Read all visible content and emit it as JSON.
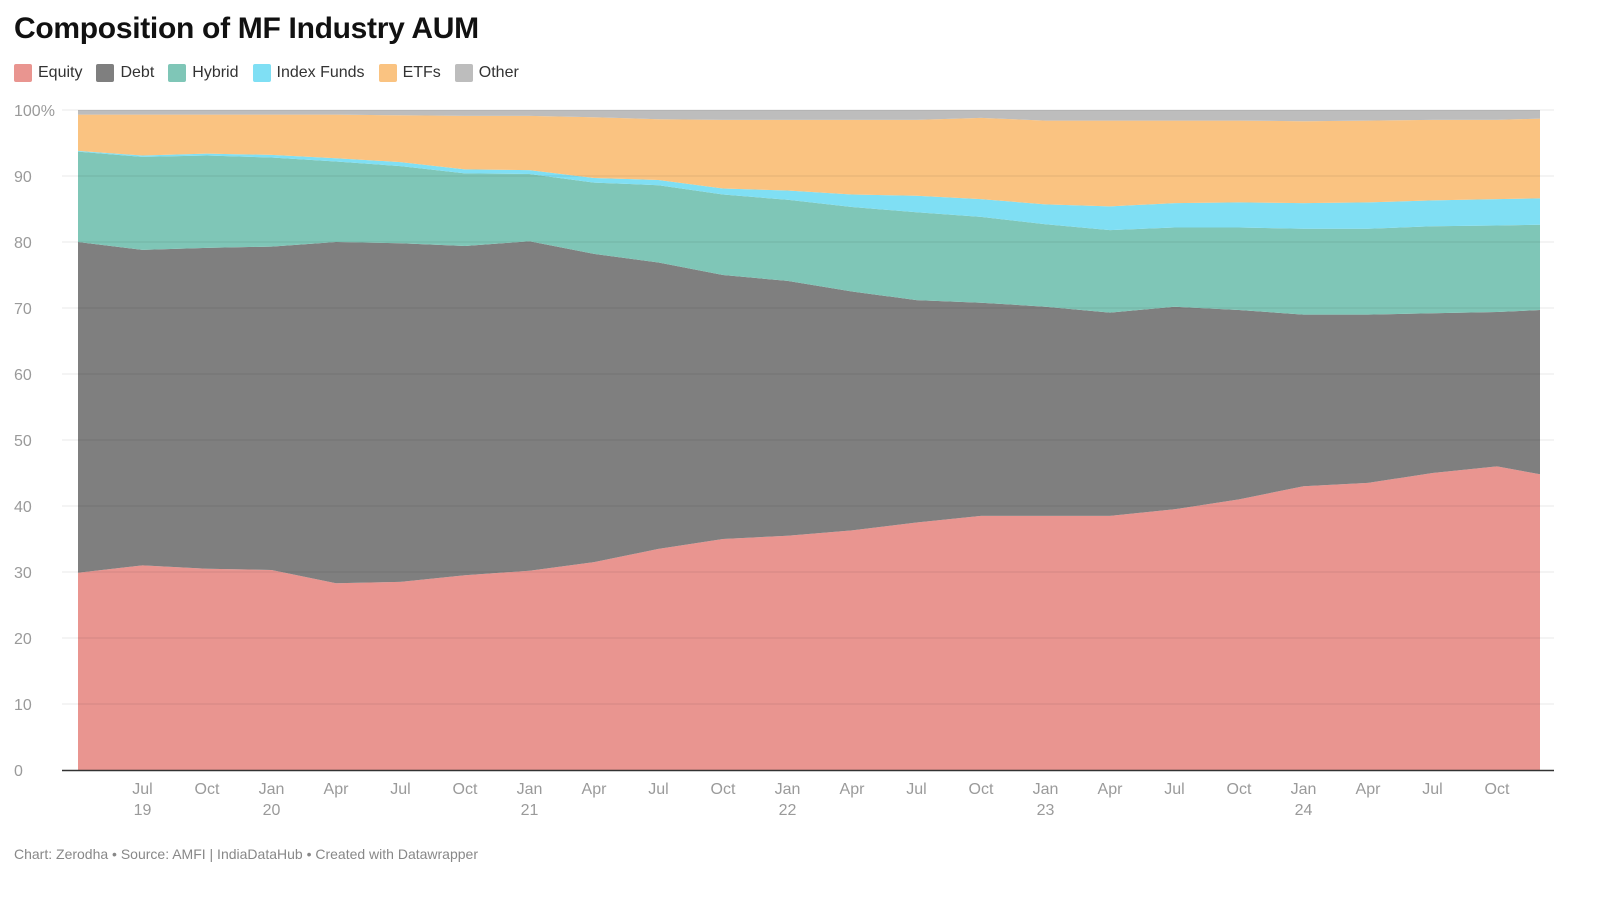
{
  "title": "Composition of MF Industry AUM",
  "footer": "Chart: Zerodha • Source: AMFI | IndiaDataHub • Created with Datawrapper",
  "chart_data": {
    "type": "area",
    "stacked": true,
    "title": "Composition of MF Industry AUM",
    "xlabel": "",
    "ylabel": "",
    "ylim": [
      0,
      100
    ],
    "y_ticks": [
      "0",
      "10",
      "20",
      "30",
      "40",
      "50",
      "60",
      "70",
      "80",
      "90",
      "100%"
    ],
    "x_ticks": [
      {
        "date": "2019-07",
        "label": "Jul",
        "year": "19"
      },
      {
        "date": "2019-10",
        "label": "Oct",
        "year": ""
      },
      {
        "date": "2020-01",
        "label": "Jan",
        "year": "20"
      },
      {
        "date": "2020-04",
        "label": "Apr",
        "year": ""
      },
      {
        "date": "2020-07",
        "label": "Jul",
        "year": ""
      },
      {
        "date": "2020-10",
        "label": "Oct",
        "year": ""
      },
      {
        "date": "2021-01",
        "label": "Jan",
        "year": "21"
      },
      {
        "date": "2021-04",
        "label": "Apr",
        "year": ""
      },
      {
        "date": "2021-07",
        "label": "Jul",
        "year": ""
      },
      {
        "date": "2021-10",
        "label": "Oct",
        "year": ""
      },
      {
        "date": "2022-01",
        "label": "Jan",
        "year": "22"
      },
      {
        "date": "2022-04",
        "label": "Apr",
        "year": ""
      },
      {
        "date": "2022-07",
        "label": "Jul",
        "year": ""
      },
      {
        "date": "2022-10",
        "label": "Oct",
        "year": ""
      },
      {
        "date": "2023-01",
        "label": "Jan",
        "year": "23"
      },
      {
        "date": "2023-04",
        "label": "Apr",
        "year": ""
      },
      {
        "date": "2023-07",
        "label": "Jul",
        "year": ""
      },
      {
        "date": "2023-10",
        "label": "Oct",
        "year": ""
      },
      {
        "date": "2024-01",
        "label": "Jan",
        "year": "24"
      },
      {
        "date": "2024-04",
        "label": "Apr",
        "year": ""
      },
      {
        "date": "2024-07",
        "label": "Jul",
        "year": ""
      },
      {
        "date": "2024-10",
        "label": "Oct",
        "year": ""
      }
    ],
    "x": [
      "2019-04",
      "2019-07",
      "2019-10",
      "2020-01",
      "2020-04",
      "2020-07",
      "2020-10",
      "2021-01",
      "2021-04",
      "2021-07",
      "2021-10",
      "2022-01",
      "2022-04",
      "2022-07",
      "2022-10",
      "2023-01",
      "2023-04",
      "2023-07",
      "2023-10",
      "2024-01",
      "2024-04",
      "2024-07",
      "2024-10",
      "2024-12"
    ],
    "series": [
      {
        "name": "Equity",
        "color": "#e99590",
        "values": [
          29.9,
          31.0,
          30.5,
          30.3,
          28.3,
          28.5,
          29.5,
          30.2,
          31.5,
          33.5,
          35.0,
          35.5,
          36.3,
          37.5,
          38.5,
          38.5,
          38.5,
          39.5,
          41.0,
          43.0,
          43.5,
          45.0,
          46.0,
          44.8
        ]
      },
      {
        "name": "Debt",
        "color": "#7f7f7f",
        "values": [
          50.1,
          47.8,
          48.6,
          49.0,
          51.7,
          51.3,
          49.9,
          49.9,
          46.7,
          43.4,
          40.0,
          38.6,
          36.2,
          33.7,
          32.3,
          31.7,
          30.8,
          30.7,
          28.7,
          26.0,
          25.5,
          24.2,
          23.4,
          24.9
        ]
      },
      {
        "name": "Hybrid",
        "color": "#7fc6b7",
        "values": [
          13.7,
          14.1,
          14.0,
          13.5,
          12.2,
          11.7,
          11.0,
          10.2,
          10.8,
          11.7,
          12.2,
          12.3,
          12.8,
          13.3,
          13.0,
          12.5,
          12.5,
          12.0,
          12.5,
          13.0,
          13.0,
          13.2,
          13.1,
          12.9
        ]
      },
      {
        "name": "Index Funds",
        "color": "#7fdff4",
        "values": [
          0.1,
          0.2,
          0.3,
          0.4,
          0.5,
          0.6,
          0.6,
          0.6,
          0.7,
          0.8,
          0.9,
          1.4,
          1.9,
          2.5,
          2.7,
          3.0,
          3.6,
          3.7,
          3.8,
          3.9,
          4.0,
          3.9,
          4.0,
          4.0
        ]
      },
      {
        "name": "ETFs",
        "color": "#fac381",
        "values": [
          5.5,
          6.2,
          5.9,
          6.1,
          6.6,
          7.1,
          8.1,
          8.2,
          9.2,
          9.2,
          10.4,
          10.7,
          11.3,
          11.5,
          12.3,
          12.7,
          13.0,
          12.5,
          12.4,
          12.4,
          12.4,
          12.2,
          12.0,
          12.1
        ]
      },
      {
        "name": "Other",
        "color": "#bdbdbd",
        "values": [
          0.7,
          0.7,
          0.7,
          0.7,
          0.7,
          0.8,
          0.9,
          0.9,
          1.1,
          1.4,
          1.5,
          1.5,
          1.5,
          1.5,
          1.2,
          1.6,
          1.6,
          1.6,
          1.6,
          1.7,
          1.6,
          1.5,
          1.5,
          1.3
        ]
      }
    ],
    "grid": true,
    "legend_position": "top-left"
  }
}
